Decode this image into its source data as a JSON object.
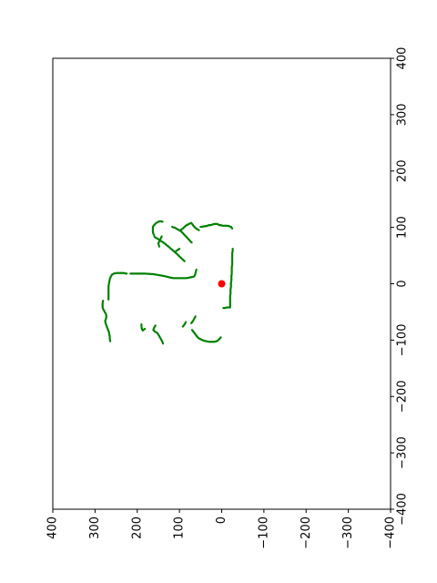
{
  "chart_data": {
    "type": "scatter",
    "title": "",
    "xlabel": "",
    "ylabel": "",
    "grid": false,
    "legend": "none",
    "x_axis": {
      "range": [
        400,
        -400
      ],
      "ticks": [
        "400",
        "300",
        "200",
        "100",
        "0",
        "−100",
        "−200",
        "−300",
        "−400"
      ],
      "tick_values": [
        400,
        300,
        200,
        100,
        0,
        -100,
        -200,
        -300,
        -400
      ],
      "label_rotation": -90,
      "position": "bottom"
    },
    "y_axis": {
      "range": [
        -400,
        400
      ],
      "ticks": [
        "−400",
        "−300",
        "−200",
        "−100",
        "0",
        "100",
        "200",
        "300",
        "400"
      ],
      "tick_values": [
        -400,
        -300,
        -200,
        -100,
        0,
        100,
        200,
        300,
        400
      ],
      "label_rotation": -90,
      "position": "right"
    },
    "colors": {
      "points": "#008000",
      "robot": "#ff0000",
      "axes": "#000000"
    },
    "robot": {
      "x": 0,
      "y": 0
    },
    "series": [
      {
        "segments": [
          [
            [
              -4,
              -43
            ],
            [
              -8,
              -43
            ],
            [
              -12,
              -42
            ],
            [
              -16,
              -42
            ],
            [
              -20,
              -42
            ],
            [
              -20,
              -38
            ],
            [
              -20,
              -34
            ],
            [
              -20,
              -30
            ],
            [
              -20,
              -26
            ],
            [
              -20,
              -22
            ],
            [
              -21,
              -18
            ],
            [
              -21,
              -14
            ],
            [
              -21,
              -10
            ],
            [
              -22,
              -6
            ],
            [
              -22,
              -2
            ],
            [
              -22,
              2
            ],
            [
              -23,
              6
            ],
            [
              -23,
              10
            ],
            [
              -23,
              14
            ],
            [
              -24,
              18
            ],
            [
              -24,
              22
            ],
            [
              -24,
              26
            ],
            [
              -24,
              30
            ],
            [
              -25,
              34
            ],
            [
              -25,
              38
            ],
            [
              -25,
              42
            ],
            [
              -25,
              46
            ],
            [
              -25,
              50
            ],
            [
              -25,
              54
            ],
            [
              -26,
              58
            ],
            [
              -26,
              62
            ]
          ],
          [
            [
              -25,
              98
            ],
            [
              -22,
              101
            ],
            [
              -18,
              102
            ],
            [
              -14,
              103
            ],
            [
              -10,
              103
            ],
            [
              -6,
              103
            ],
            [
              -2,
              103
            ],
            [
              2,
              104
            ],
            [
              6,
              104
            ],
            [
              10,
              106
            ],
            [
              14,
              106
            ],
            [
              18,
              106
            ],
            [
              22,
              105
            ],
            [
              26,
              104
            ],
            [
              30,
              104
            ],
            [
              34,
              103
            ],
            [
              38,
              102
            ],
            [
              42,
              102
            ],
            [
              46,
              101
            ],
            [
              50,
              101
            ]
          ],
          [
            [
              54,
              95
            ],
            [
              58,
              97
            ],
            [
              62,
              99
            ],
            [
              66,
              102
            ],
            [
              69,
              105
            ],
            [
              72,
              108
            ],
            [
              78,
              106
            ],
            [
              85,
              103
            ],
            [
              92,
              98
            ],
            [
              98,
              95
            ]
          ],
          [
            [
              71,
              73
            ],
            [
              76,
              77
            ],
            [
              81,
              81
            ],
            [
              86,
              85
            ],
            [
              91,
              89
            ],
            [
              96,
              93
            ],
            [
              103,
              96
            ],
            [
              110,
              99
            ],
            [
              117,
              101
            ]
          ],
          [
            [
              140,
              110
            ],
            [
              146,
              111
            ],
            [
              150,
              110
            ],
            [
              155,
              108
            ],
            [
              160,
              104
            ],
            [
              163,
              101
            ],
            [
              163,
              97
            ],
            [
              163,
              93
            ],
            [
              162,
              89
            ],
            [
              160,
              86
            ]
          ],
          [
            [
              159,
              83
            ],
            [
              152,
              80
            ],
            [
              144,
              76
            ],
            [
              136,
              72
            ],
            [
              126,
              66
            ],
            [
              117,
              60
            ],
            [
              109,
              55
            ],
            [
              102,
              50
            ],
            [
              95,
              45
            ],
            [
              88,
              40
            ]
          ],
          [
            [
              100,
              62
            ],
            [
              108,
              58
            ]
          ],
          [
            [
              148,
              66
            ],
            [
              150,
              72
            ],
            [
              146,
              78
            ],
            [
              142,
              84
            ]
          ],
          [
            [
              60,
              25
            ],
            [
              61,
              22
            ],
            [
              62,
              19
            ],
            [
              63,
              16
            ],
            [
              65,
              13
            ],
            [
              70,
              12
            ],
            [
              76,
              11
            ],
            [
              84,
              10
            ],
            [
              94,
              10
            ],
            [
              104,
              10
            ],
            [
              114,
              10
            ],
            [
              122,
              11
            ],
            [
              132,
              13
            ],
            [
              146,
              15
            ],
            [
              162,
              17
            ],
            [
              182,
              18
            ],
            [
              200,
              18
            ],
            [
              216,
              18
            ]
          ],
          [
            [
              225,
              18
            ],
            [
              232,
              19
            ],
            [
              240,
              19
            ],
            [
              248,
              19
            ],
            [
              256,
              18
            ],
            [
              260,
              16
            ],
            [
              263,
              12
            ],
            [
              265,
              8
            ],
            [
              266,
              4
            ],
            [
              267,
              0
            ],
            [
              268,
              -4
            ],
            [
              268,
              -8
            ],
            [
              268,
              -12
            ],
            [
              268,
              -16
            ],
            [
              268,
              -20
            ],
            [
              268,
              -24
            ],
            [
              268,
              -28
            ]
          ],
          [
            [
              281,
              -30
            ],
            [
              282,
              -34
            ],
            [
              282,
              -38
            ],
            [
              282,
              -42
            ],
            [
              280,
              -46
            ],
            [
              277,
              -50
            ],
            [
              274,
              -54
            ],
            [
              273,
              -58
            ],
            [
              274,
              -62
            ],
            [
              276,
              -66
            ],
            [
              275,
              -70
            ],
            [
              273,
              -74
            ],
            [
              271,
              -78
            ],
            [
              269,
              -82
            ],
            [
              267,
              -86
            ],
            [
              266,
              -90
            ],
            [
              265,
              -94
            ],
            [
              265,
              -98
            ],
            [
              264,
              -102
            ]
          ],
          [
            [
              62,
              -58
            ],
            [
              65,
              -62
            ],
            [
              68,
              -66
            ],
            [
              72,
              -70
            ]
          ],
          [
            [
              85,
              -68
            ],
            [
              88,
              -72
            ],
            [
              92,
              -76
            ]
          ],
          [
            [
              70,
              -82
            ],
            [
              66,
              -86
            ],
            [
              62,
              -90
            ],
            [
              58,
              -94
            ],
            [
              54,
              -97
            ],
            [
              48,
              -99
            ],
            [
              42,
              -101
            ],
            [
              36,
              -102
            ],
            [
              30,
              -103
            ],
            [
              24,
              -103
            ],
            [
              18,
              -103
            ],
            [
              12,
              -102
            ],
            [
              8,
              -100
            ],
            [
              4,
              -97
            ],
            [
              2,
              -95
            ]
          ],
          [
            [
              190,
              -72
            ],
            [
              190,
              -76
            ],
            [
              189,
              -80
            ],
            [
              187,
              -83
            ],
            [
              184,
              -81
            ],
            [
              182,
              -80
            ]
          ],
          [
            [
              157,
              -74
            ],
            [
              160,
              -78
            ],
            [
              162,
              -82
            ],
            [
              158,
              -85
            ],
            [
              153,
              -87
            ],
            [
              150,
              -90
            ],
            [
              147,
              -94
            ],
            [
              144,
              -98
            ],
            [
              141,
              -102
            ],
            [
              139,
              -106
            ]
          ]
        ],
        "values": []
      }
    ]
  }
}
